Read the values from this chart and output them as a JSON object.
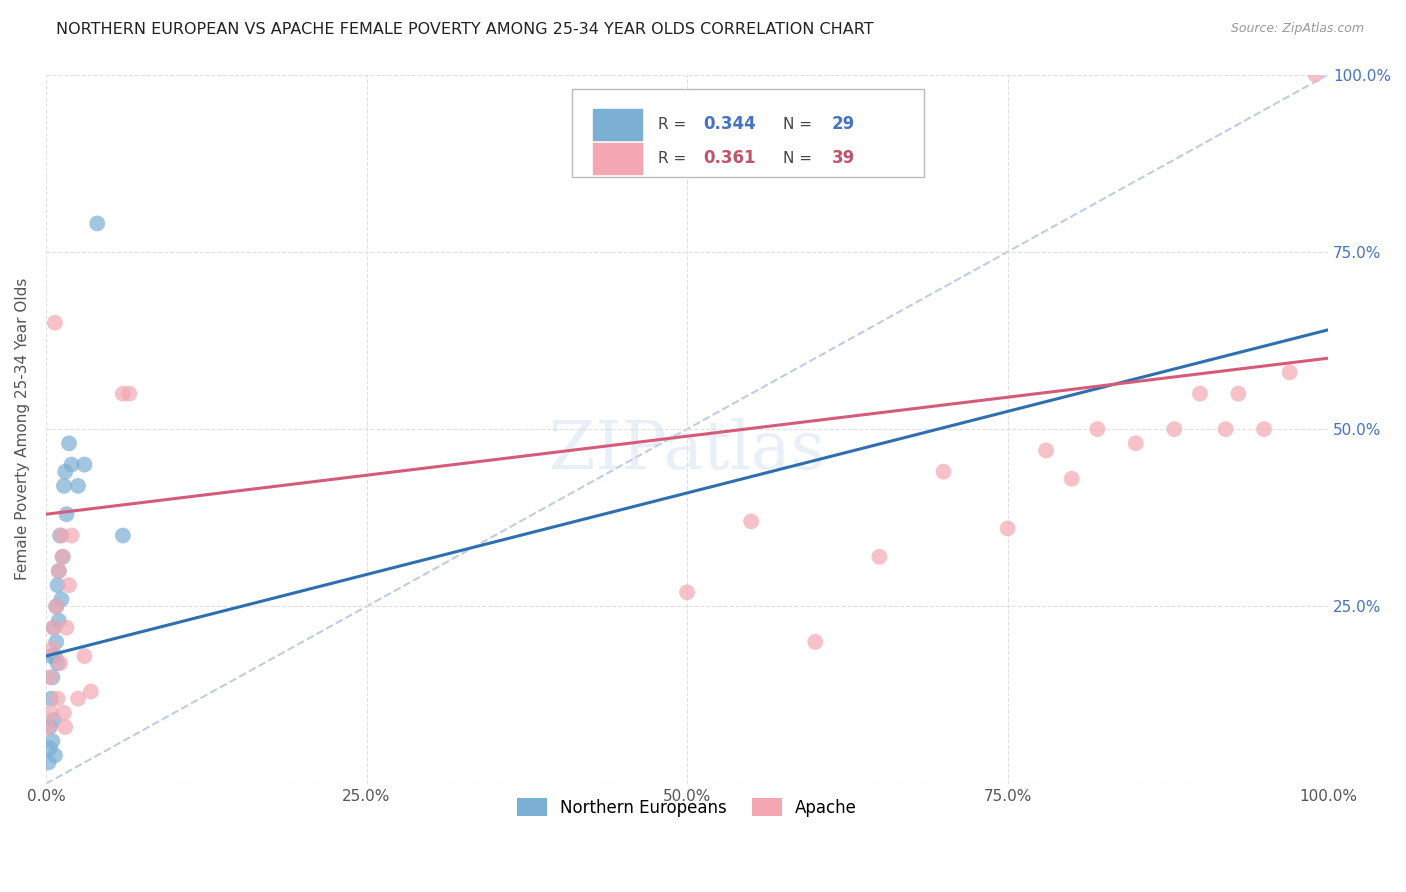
{
  "title": "NORTHERN EUROPEAN VS APACHE FEMALE POVERTY AMONG 25-34 YEAR OLDS CORRELATION CHART",
  "source": "Source: ZipAtlas.com",
  "ylabel": "Female Poverty Among 25-34 Year Olds",
  "xlim": [
    0,
    1
  ],
  "ylim": [
    0,
    1
  ],
  "xticks": [
    0.0,
    0.25,
    0.5,
    0.75,
    1.0
  ],
  "yticks": [
    0.0,
    0.25,
    0.5,
    0.75,
    1.0
  ],
  "xticklabels": [
    "0.0%",
    "25.0%",
    "50.0%",
    "75.0%",
    "100.0%"
  ],
  "right_yticklabels": [
    "",
    "25.0%",
    "50.0%",
    "75.0%",
    "100.0%"
  ],
  "legend_r1": "0.344",
  "legend_n1": "29",
  "legend_r2": "0.361",
  "legend_n2": "39",
  "blue_scatter_color": "#7bafd4",
  "pink_scatter_color": "#f4a7b2",
  "blue_line_color": "#2e6faf",
  "pink_line_color": "#d45c7a",
  "diagonal_color": "#b8c8e0",
  "grid_color": "#e0e0e0",
  "background_color": "#ffffff",
  "watermark": "ZIPatlas",
  "ne_x": [
    0.002,
    0.003,
    0.003,
    0.004,
    0.004,
    0.005,
    0.005,
    0.006,
    0.006,
    0.007,
    0.007,
    0.008,
    0.008,
    0.009,
    0.009,
    0.01,
    0.01,
    0.011,
    0.012,
    0.013,
    0.014,
    0.015,
    0.016,
    0.018,
    0.02,
    0.025,
    0.03,
    0.04,
    0.06
  ],
  "ne_y": [
    0.03,
    0.05,
    0.08,
    0.12,
    0.18,
    0.06,
    0.15,
    0.22,
    0.09,
    0.04,
    0.18,
    0.2,
    0.25,
    0.28,
    0.17,
    0.3,
    0.23,
    0.35,
    0.26,
    0.32,
    0.42,
    0.44,
    0.38,
    0.48,
    0.45,
    0.42,
    0.45,
    0.79,
    0.35
  ],
  "ap_x": [
    0.002,
    0.003,
    0.004,
    0.005,
    0.006,
    0.007,
    0.008,
    0.009,
    0.01,
    0.011,
    0.012,
    0.013,
    0.014,
    0.015,
    0.016,
    0.018,
    0.02,
    0.025,
    0.03,
    0.035,
    0.06,
    0.065,
    0.5,
    0.55,
    0.6,
    0.65,
    0.7,
    0.75,
    0.78,
    0.8,
    0.82,
    0.85,
    0.88,
    0.9,
    0.92,
    0.93,
    0.95,
    0.97,
    0.99
  ],
  "ap_y": [
    0.08,
    0.15,
    0.1,
    0.19,
    0.22,
    0.65,
    0.25,
    0.12,
    0.3,
    0.17,
    0.35,
    0.32,
    0.1,
    0.08,
    0.22,
    0.28,
    0.35,
    0.12,
    0.18,
    0.13,
    0.55,
    0.55,
    0.27,
    0.37,
    0.2,
    0.32,
    0.44,
    0.36,
    0.47,
    0.43,
    0.5,
    0.48,
    0.5,
    0.55,
    0.5,
    0.55,
    0.5,
    0.58,
    1.0
  ]
}
